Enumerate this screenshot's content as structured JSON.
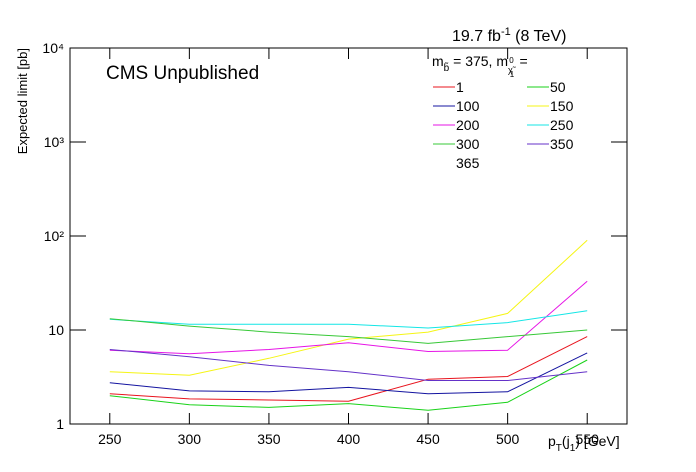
{
  "chart_data": {
    "type": "line",
    "title": [
      "19.7 fb",
      "-1",
      " (8 TeV)"
    ],
    "annotation": "CMS Unpublished",
    "x_label": [
      "p",
      "T",
      "(j",
      "1",
      ") [GeV]"
    ],
    "y_label": "Expected limit [pb]",
    "legend_title": [
      "m",
      "b̃",
      " = 375, m",
      "χ̃",
      "1",
      "0",
      " ="
    ],
    "x": [
      250,
      300,
      350,
      400,
      450,
      500,
      550
    ],
    "xlim": [
      225,
      575
    ],
    "xticks": [
      250,
      300,
      350,
      400,
      450,
      500,
      550
    ],
    "ylim": [
      1,
      10000
    ],
    "log_y": true,
    "yticks": [
      1,
      10,
      {
        "value": 100,
        "label": "10²"
      },
      {
        "value": 1000,
        "label": "10³"
      },
      {
        "value": 10000,
        "label": "10⁴"
      }
    ],
    "series": [
      {
        "name": "1",
        "color": "#e8141e",
        "values": [
          2.1,
          1.85,
          1.8,
          1.75,
          3.0,
          3.2,
          8.5
        ]
      },
      {
        "name": "50",
        "color": "#19d219",
        "values": [
          2.0,
          1.6,
          1.5,
          1.65,
          1.4,
          1.7,
          4.8
        ]
      },
      {
        "name": "100",
        "color": "#1414a0",
        "values": [
          2.75,
          2.25,
          2.2,
          2.45,
          2.1,
          2.2,
          5.7
        ]
      },
      {
        "name": "150",
        "color": "#f5f514",
        "values": [
          3.6,
          3.3,
          5.0,
          8.0,
          9.5,
          15,
          90
        ]
      },
      {
        "name": "200",
        "color": "#e614e6",
        "values": [
          6.1,
          5.6,
          6.2,
          7.3,
          5.9,
          6.1,
          33
        ]
      },
      {
        "name": "250",
        "color": "#14e6e6",
        "values": [
          13,
          11.5,
          11.5,
          11.5,
          10.5,
          12,
          16
        ]
      },
      {
        "name": "300",
        "color": "#37c837",
        "values": [
          13.2,
          11,
          9.5,
          8.5,
          7.2,
          8.5,
          10
        ]
      },
      {
        "name": "350",
        "color": "#6432c8",
        "values": [
          6.2,
          5.2,
          4.2,
          3.6,
          2.9,
          2.9,
          3.6
        ]
      },
      {
        "name": "365",
        "color": "#ffffff",
        "values": [
          null,
          null,
          null,
          null,
          null,
          null,
          null
        ]
      }
    ]
  }
}
